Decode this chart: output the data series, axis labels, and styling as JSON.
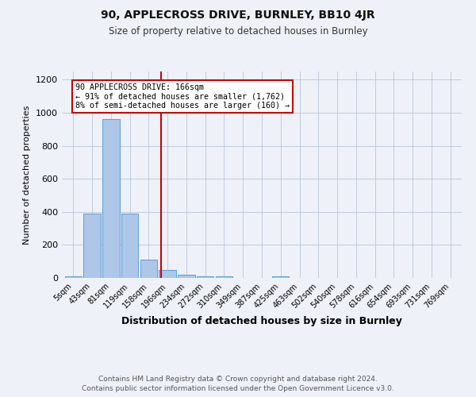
{
  "title1": "90, APPLECROSS DRIVE, BURNLEY, BB10 4JR",
  "title2": "Size of property relative to detached houses in Burnley",
  "xlabel": "Distribution of detached houses by size in Burnley",
  "ylabel": "Number of detached properties",
  "categories": [
    "5sqm",
    "43sqm",
    "81sqm",
    "119sqm",
    "158sqm",
    "196sqm",
    "234sqm",
    "272sqm",
    "310sqm",
    "349sqm",
    "387sqm",
    "425sqm",
    "463sqm",
    "502sqm",
    "540sqm",
    "578sqm",
    "616sqm",
    "654sqm",
    "693sqm",
    "731sqm",
    "769sqm"
  ],
  "values": [
    10,
    390,
    960,
    390,
    110,
    50,
    20,
    10,
    10,
    0,
    0,
    10,
    0,
    0,
    0,
    0,
    0,
    0,
    0,
    0,
    0
  ],
  "bar_color": "#aec6e8",
  "bar_edge_color": "#5a9fd4",
  "vline_x": 4.65,
  "vline_color": "#cc0000",
  "annotation_text_line1": "90 APPLECROSS DRIVE: 166sqm",
  "annotation_text_line2": "← 91% of detached houses are smaller (1,762)",
  "annotation_text_line3": "8% of semi-detached houses are larger (160) →",
  "annotation_box_color": "#ffffff",
  "annotation_box_edge_color": "#cc0000",
  "ylim": [
    0,
    1250
  ],
  "yticks": [
    0,
    200,
    400,
    600,
    800,
    1000,
    1200
  ],
  "footer1": "Contains HM Land Registry data © Crown copyright and database right 2024.",
  "footer2": "Contains public sector information licensed under the Open Government Licence v3.0.",
  "bg_color": "#eef2f8"
}
